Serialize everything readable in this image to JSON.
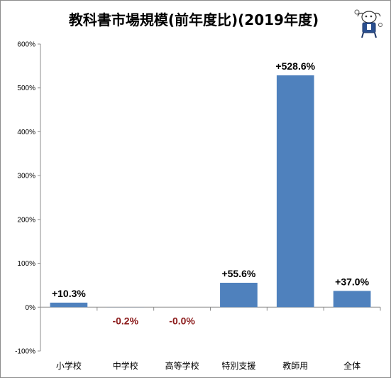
{
  "chart_data": {
    "type": "bar",
    "title": "教科書市場規模(前年度比)(2019年度)",
    "categories": [
      "小学校",
      "中学校",
      "高等学校",
      "特別支援",
      "教師用",
      "全体"
    ],
    "values": [
      10.3,
      -0.2,
      -0.0,
      55.6,
      528.6,
      37.0
    ],
    "data_labels": [
      "+10.3%",
      "-0.2%",
      "-0.0%",
      "+55.6%",
      "+528.6%",
      "+37.0%"
    ],
    "ylim": [
      -100,
      600
    ],
    "yticks": [
      -100,
      0,
      100,
      200,
      300,
      400,
      500,
      600
    ],
    "ytick_labels": [
      "-100%",
      "0%",
      "100%",
      "200%",
      "300%",
      "400%",
      "500%",
      "600%"
    ],
    "xlabel": "",
    "ylabel": "",
    "grid": false,
    "legend": "none",
    "colors": {
      "bar": "#4f81bd",
      "positive_label": "#000000",
      "negative_label": "#8b1a1a",
      "axis": "#8c8c8c"
    }
  },
  "mascot": {
    "icon": "mascot-icon"
  }
}
